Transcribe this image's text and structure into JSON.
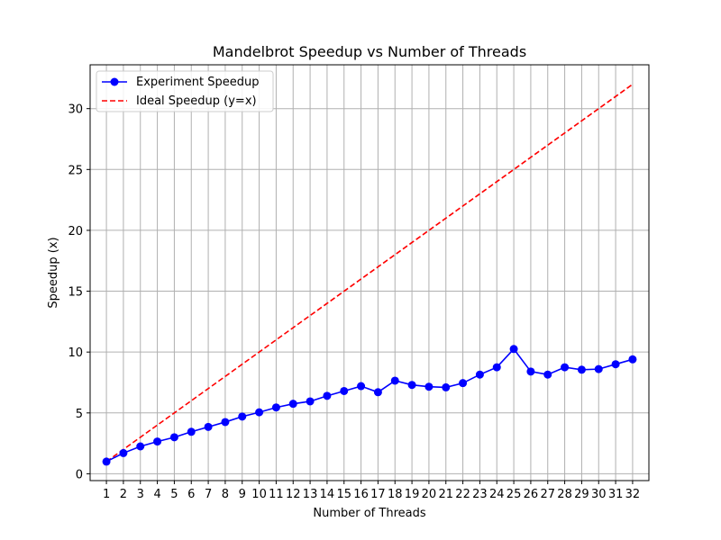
{
  "chart_data": {
    "type": "line",
    "title": "Mandelbrot Speedup vs Number of Threads",
    "xlabel": "Number of Threads",
    "ylabel": "Speedup (x)",
    "x": [
      1,
      2,
      3,
      4,
      5,
      6,
      7,
      8,
      9,
      10,
      11,
      12,
      13,
      14,
      15,
      16,
      17,
      18,
      19,
      20,
      21,
      22,
      23,
      24,
      25,
      26,
      27,
      28,
      29,
      30,
      31,
      32
    ],
    "xticks": [
      "1",
      "2",
      "3",
      "4",
      "5",
      "6",
      "7",
      "8",
      "9",
      "10",
      "11",
      "12",
      "13",
      "14",
      "15",
      "16",
      "17",
      "18",
      "19",
      "20",
      "21",
      "22",
      "23",
      "24",
      "25",
      "26",
      "27",
      "28",
      "29",
      "30",
      "31",
      "32"
    ],
    "xlim": [
      0.04,
      32.96
    ],
    "ylim": [
      -0.56,
      33.6
    ],
    "yticks": [
      0,
      5,
      10,
      15,
      20,
      25,
      30
    ],
    "ytick_labels": [
      "0",
      "5",
      "10",
      "15",
      "20",
      "25",
      "30"
    ],
    "grid": true,
    "legend_position": "top-left",
    "series": [
      {
        "name": "Experiment Speedup",
        "style": "solid line with circle markers",
        "color": "#0000ff",
        "values": [
          1.0,
          1.7,
          2.25,
          2.65,
          3.0,
          3.45,
          3.85,
          4.25,
          4.7,
          5.05,
          5.45,
          5.75,
          5.95,
          6.4,
          6.8,
          7.2,
          6.7,
          7.65,
          7.3,
          7.15,
          7.1,
          7.45,
          8.15,
          8.75,
          10.25,
          8.4,
          8.15,
          8.75,
          8.55,
          8.6,
          9.0,
          9.4
        ]
      },
      {
        "name": "Ideal Speedup (y=x)",
        "style": "dashed line",
        "color": "#ff0000",
        "values": [
          1,
          2,
          3,
          4,
          5,
          6,
          7,
          8,
          9,
          10,
          11,
          12,
          13,
          14,
          15,
          16,
          17,
          18,
          19,
          20,
          21,
          22,
          23,
          24,
          25,
          26,
          27,
          28,
          29,
          30,
          31,
          32
        ]
      }
    ]
  }
}
